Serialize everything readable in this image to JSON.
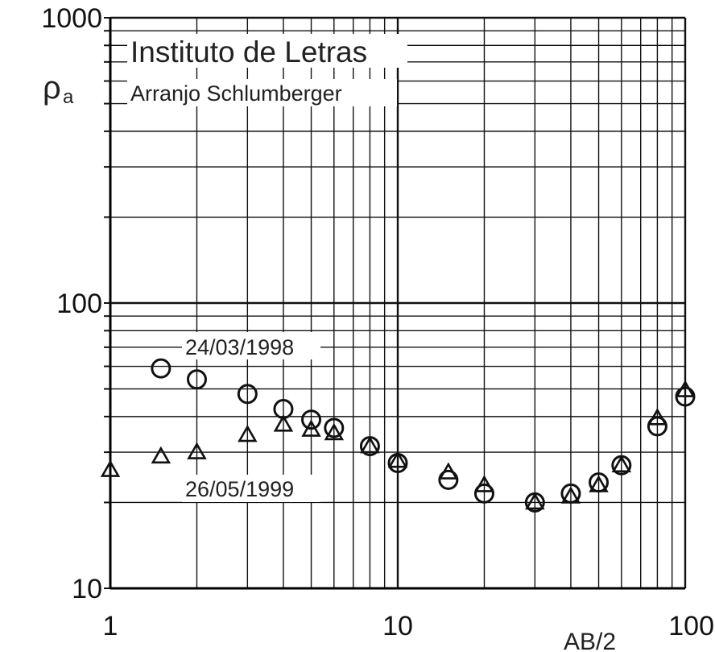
{
  "chart_data": {
    "type": "scatter",
    "title": "Instituto de Letras",
    "subtitle": "Arranjo Schlumberger",
    "ylabel_main": "ρ",
    "ylabel_sub": "a",
    "xlabel": "AB/2",
    "x_scale": "log",
    "y_scale": "log",
    "xlim": [
      1,
      100
    ],
    "ylim": [
      10,
      1000
    ],
    "x_ticks": [
      "1",
      "10",
      "100"
    ],
    "y_ticks": [
      "10",
      "100",
      "1000"
    ],
    "grid": true,
    "colors": {
      "grid": "#111111",
      "markers": "#111111"
    },
    "series": [
      {
        "name": "24/03/1998",
        "marker": "circle",
        "points": [
          {
            "x": 1.5,
            "y": 59
          },
          {
            "x": 2,
            "y": 54
          },
          {
            "x": 3,
            "y": 48
          },
          {
            "x": 4,
            "y": 42.5
          },
          {
            "x": 5,
            "y": 39
          },
          {
            "x": 6,
            "y": 36.5
          },
          {
            "x": 8,
            "y": 31.5
          },
          {
            "x": 10,
            "y": 27.5
          },
          {
            "x": 15,
            "y": 24
          },
          {
            "x": 20,
            "y": 21.5
          },
          {
            "x": 30,
            "y": 20
          },
          {
            "x": 40,
            "y": 21.5
          },
          {
            "x": 50,
            "y": 23.5
          },
          {
            "x": 60,
            "y": 27
          },
          {
            "x": 80,
            "y": 37
          },
          {
            "x": 100,
            "y": 47
          }
        ]
      },
      {
        "name": "26/05/1999",
        "marker": "triangle",
        "points": [
          {
            "x": 1,
            "y": 26
          },
          {
            "x": 1.5,
            "y": 29
          },
          {
            "x": 2,
            "y": 30
          },
          {
            "x": 3,
            "y": 34.5
          },
          {
            "x": 4,
            "y": 37.5
          },
          {
            "x": 5,
            "y": 36
          },
          {
            "x": 6,
            "y": 35
          },
          {
            "x": 8,
            "y": 31.5
          },
          {
            "x": 10,
            "y": 28
          },
          {
            "x": 15,
            "y": 25.5
          },
          {
            "x": 20,
            "y": 23
          },
          {
            "x": 30,
            "y": 20
          },
          {
            "x": 40,
            "y": 21
          },
          {
            "x": 50,
            "y": 23
          },
          {
            "x": 60,
            "y": 27
          },
          {
            "x": 80,
            "y": 39.5
          },
          {
            "x": 100,
            "y": 49.5
          }
        ]
      }
    ],
    "annotations": [
      {
        "text": "24/03/1998",
        "near_series": "24/03/1998"
      },
      {
        "text": "26/05/1999",
        "near_series": "26/05/1999"
      }
    ]
  }
}
